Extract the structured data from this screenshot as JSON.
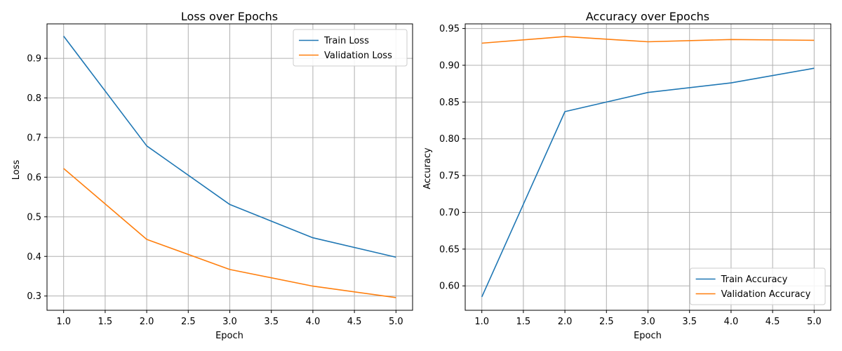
{
  "chart_data": [
    {
      "type": "line",
      "title": "Loss over Epochs",
      "xlabel": "Epoch",
      "ylabel": "Loss",
      "x": [
        1.0,
        2.0,
        3.0,
        4.0,
        5.0
      ],
      "xlim": [
        0.8,
        5.2
      ],
      "ylim": [
        0.264,
        0.987
      ],
      "xticks": [
        "1.0",
        "1.5",
        "2.0",
        "2.5",
        "3.0",
        "3.5",
        "4.0",
        "4.5",
        "5.0"
      ],
      "yticks": [
        "0.3",
        "0.4",
        "0.5",
        "0.6",
        "0.7",
        "0.8",
        "0.9"
      ],
      "grid": true,
      "legend_position": "top-right",
      "series": [
        {
          "name": "Train Loss",
          "values": [
            0.956,
            0.679,
            0.531,
            0.447,
            0.398
          ],
          "color": "#1f77b4"
        },
        {
          "name": "Validation Loss",
          "values": [
            0.622,
            0.443,
            0.367,
            0.325,
            0.296
          ],
          "color": "#ff7f0e"
        }
      ]
    },
    {
      "type": "line",
      "title": "Accuracy over Epochs",
      "xlabel": "Epoch",
      "ylabel": "Accuracy",
      "x": [
        1.0,
        2.0,
        3.0,
        4.0,
        5.0
      ],
      "xlim": [
        0.8,
        5.2
      ],
      "ylim": [
        0.5668,
        0.9563
      ],
      "xticks": [
        "1.0",
        "1.5",
        "2.0",
        "2.5",
        "3.0",
        "3.5",
        "4.0",
        "4.5",
        "5.0"
      ],
      "yticks": [
        "0.60",
        "0.65",
        "0.70",
        "0.75",
        "0.80",
        "0.85",
        "0.90",
        "0.95"
      ],
      "grid": true,
      "legend_position": "bottom-right",
      "series": [
        {
          "name": "Train Accuracy",
          "values": [
            0.585,
            0.837,
            0.863,
            0.876,
            0.896
          ],
          "color": "#1f77b4"
        },
        {
          "name": "Validation Accuracy",
          "values": [
            0.93,
            0.939,
            0.932,
            0.935,
            0.934
          ],
          "color": "#ff7f0e"
        }
      ]
    }
  ]
}
